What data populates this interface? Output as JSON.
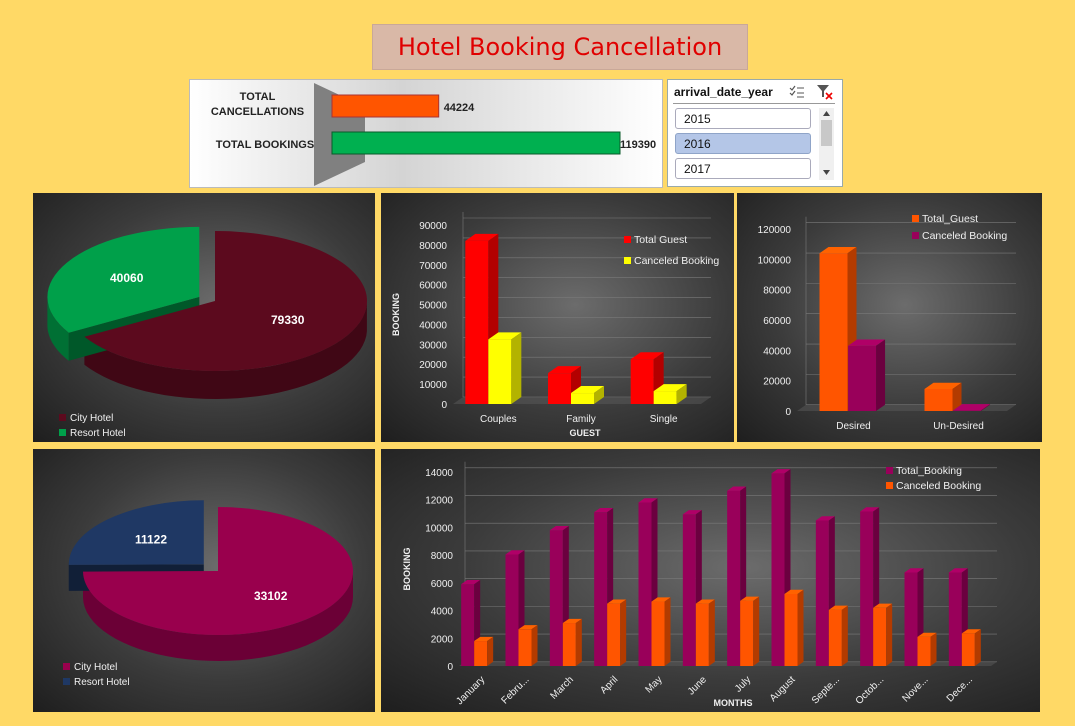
{
  "title": "Hotel Booking Cancellation",
  "kpi": {
    "cancel_label_1": "TOTAL",
    "cancel_label_2": "CANCELLATIONS",
    "bookings_label": "TOTAL BOOKINGS",
    "cancellations": 44224,
    "bookings": 119390,
    "cancel_color": "#FF5500",
    "bookings_color": "#00B050"
  },
  "slicer": {
    "header": "arrival_date_year",
    "items": [
      "2015",
      "2016",
      "2017"
    ],
    "selected": "2016",
    "icons": [
      "multi-select-icon",
      "clear-filter-icon"
    ]
  },
  "chart_data": [
    {
      "type": "pie",
      "labels": [
        "City Hotel",
        "Resort Hotel"
      ],
      "values": [
        79330,
        40060
      ],
      "colors": [
        "#5C0A1E",
        "#00A04A"
      ],
      "legend": "bottom-left"
    },
    {
      "type": "bar",
      "categories": [
        "Couples",
        "Family",
        "Single"
      ],
      "series": [
        {
          "name": "Total Guest",
          "values": [
            82000,
            15500,
            22500
          ],
          "color": "#FF0000"
        },
        {
          "name": "Canceled Booking",
          "values": [
            32500,
            5500,
            6500
          ],
          "color": "#FFFF00"
        }
      ],
      "xlabel": "GUEST",
      "ylabel": "BOOKING",
      "ylim": [
        0,
        90000
      ],
      "yticks": [
        "0",
        "10000",
        "20000",
        "30000",
        "40000",
        "50000",
        "60000",
        "70000",
        "80000",
        "90000"
      ],
      "legend": "top-right"
    },
    {
      "type": "bar",
      "categories": [
        "Desired",
        "Un-Desired"
      ],
      "series": [
        {
          "name": "Total_Guest",
          "values": [
            104000,
            14500
          ],
          "color": "#FF5500"
        },
        {
          "name": "Canceled Booking",
          "values": [
            43000,
            400
          ],
          "color": "#99005A"
        }
      ],
      "ylim": [
        0,
        120000
      ],
      "yticks": [
        "0",
        "20000",
        "40000",
        "60000",
        "80000",
        "100000",
        "120000"
      ],
      "legend": "top-right"
    },
    {
      "type": "pie",
      "labels": [
        "City Hotel",
        "Resort Hotel"
      ],
      "values": [
        33102,
        11122
      ],
      "colors": [
        "#99004D",
        "#1F3864"
      ],
      "legend": "bottom-left"
    },
    {
      "type": "bar",
      "categories": [
        "January",
        "Febru...",
        "March",
        "April",
        "May",
        "June",
        "July",
        "August",
        "Septe...",
        "Octob...",
        "Nove...",
        "Dece..."
      ],
      "series": [
        {
          "name": "Total_Booking",
          "values": [
            5900,
            8050,
            9800,
            11100,
            11800,
            10950,
            12650,
            13900,
            10500,
            11150,
            6750,
            6750
          ],
          "color": "#99005A"
        },
        {
          "name": "Canceled Booking",
          "values": [
            1800,
            2650,
            3100,
            4500,
            4650,
            4500,
            4700,
            5200,
            4050,
            4200,
            2100,
            2350
          ],
          "color": "#FF5500"
        }
      ],
      "xlabel": "MONTHS",
      "ylabel": "BOOKING",
      "ylim": [
        0,
        14000
      ],
      "yticks": [
        "0",
        "2000",
        "4000",
        "6000",
        "8000",
        "10000",
        "12000",
        "14000"
      ],
      "legend": "top-right"
    }
  ]
}
